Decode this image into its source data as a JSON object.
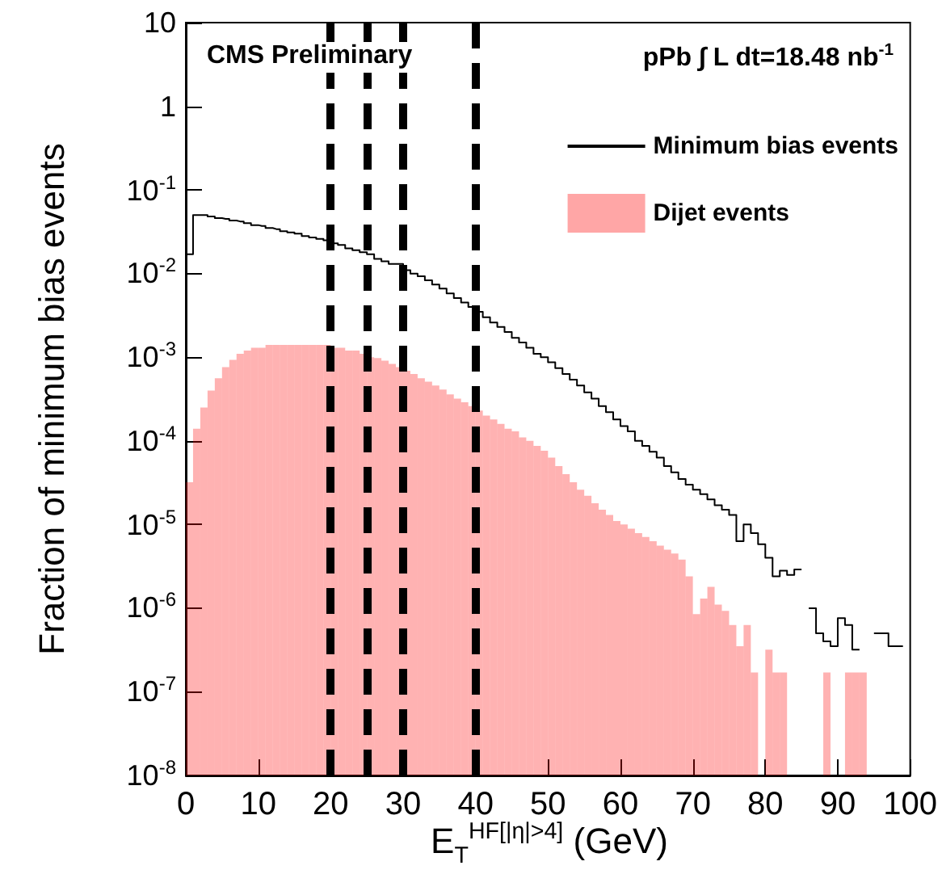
{
  "chart_data": {
    "type": "histogram",
    "xlabel": "E$_{T}$$^{HF[|η|>4]}$ (GeV)",
    "ylabel": "Fraction of minimum bias events",
    "annotations": [
      "CMS Preliminary",
      "pPb ∫ L dt=18.48 nb$^{-1}$"
    ],
    "bins": [
      0,
      1,
      2,
      3,
      4,
      5,
      6,
      7,
      8,
      9,
      10,
      11,
      12,
      13,
      14,
      15,
      16,
      17,
      18,
      19,
      20,
      21,
      22,
      23,
      24,
      25,
      26,
      27,
      28,
      29,
      30,
      31,
      32,
      33,
      34,
      35,
      36,
      37,
      38,
      39,
      40,
      41,
      42,
      43,
      44,
      45,
      46,
      47,
      48,
      49,
      50,
      51,
      52,
      53,
      54,
      55,
      56,
      57,
      58,
      59,
      60,
      61,
      62,
      63,
      64,
      65,
      66,
      67,
      68,
      69,
      70,
      71,
      72,
      73,
      74,
      75,
      76,
      77,
      78,
      79,
      80,
      81,
      82,
      83,
      84,
      85,
      86,
      87,
      88,
      89,
      90,
      91,
      92,
      93,
      94,
      95,
      96,
      97,
      98,
      99,
      100
    ],
    "series": [
      {
        "name": "Minimum bias events",
        "type": "step",
        "color": "#000000",
        "x": [
          0.5,
          1.5,
          2.5,
          3.5,
          4.5,
          5.5,
          6.5,
          7.5,
          8.5,
          9.5,
          10.5,
          11.5,
          12.5,
          13.5,
          14.5,
          15.5,
          16.5,
          17.5,
          18.5,
          19.5,
          20.5,
          21.5,
          22.5,
          23.5,
          24.5,
          25.5,
          26.5,
          27.5,
          28.5,
          29.5,
          30.5,
          31.5,
          32.5,
          33.5,
          34.5,
          35.5,
          36.5,
          37.5,
          38.5,
          39.5,
          40.5,
          41.5,
          42.5,
          43.5,
          44.5,
          45.5,
          46.5,
          47.5,
          48.5,
          49.5,
          50.5,
          51.5,
          52.5,
          53.5,
          54.5,
          55.5,
          56.5,
          57.5,
          58.5,
          59.5,
          60.5,
          61.5,
          62.5,
          63.5,
          64.5,
          65.5,
          66.5,
          67.5,
          68.5,
          69.5,
          70.5,
          71.5,
          72.5,
          73.5,
          74.5,
          75.5,
          76.5,
          77.5,
          78.5,
          79.5,
          80.5,
          81.5,
          82.5,
          83.5,
          84.5,
          85.5,
          86.5,
          87.5,
          88.5,
          89.5,
          90.5,
          91.5,
          92.5,
          93.5,
          94.5,
          95.5,
          96.5,
          97.5,
          98.5
        ],
        "values": [
          0.017,
          0.05,
          0.05,
          0.048,
          0.046,
          0.045,
          0.043,
          0.042,
          0.04,
          0.038,
          0.037,
          0.035,
          0.034,
          0.032,
          0.031,
          0.03,
          0.028,
          0.027,
          0.026,
          0.025,
          0.023,
          0.022,
          0.02,
          0.019,
          0.018,
          0.017,
          0.015,
          0.014,
          0.013,
          0.013,
          0.011,
          0.01,
          0.0093,
          0.0083,
          0.0074,
          0.0066,
          0.0058,
          0.0051,
          0.0045,
          0.004,
          0.0035,
          0.003,
          0.0026,
          0.0023,
          0.002,
          0.0017,
          0.0015,
          0.0013,
          0.0011,
          0.001,
          0.00087,
          0.00074,
          0.00063,
          0.00054,
          0.00046,
          0.00038,
          0.00032,
          0.00026,
          0.00022,
          0.00018,
          0.00015,
          0.00013,
          0.0001,
          8.7e-05,
          7.4e-05,
          6.3e-05,
          5e-05,
          4.2e-05,
          3.5e-05,
          3e-05,
          2.6e-05,
          2.3e-05,
          2e-05,
          1.7e-05,
          1.5e-05,
          1.3e-05,
          6.3e-06,
          1e-05,
          7.9e-06,
          5.8e-06,
          4e-06,
          2.4e-06,
          2.8e-06,
          2.5e-06,
          2.9e-06,
          null,
          1e-06,
          5e-07,
          4e-07,
          3.5e-07,
          7.6e-07,
          6.3e-07,
          3.2e-07,
          null,
          null,
          5e-07,
          5e-07,
          3.5e-07,
          3.5e-07
        ]
      },
      {
        "name": "Dijet events",
        "type": "histogram",
        "color": "#ff0000",
        "values": [
          3.2e-05,
          0.00014,
          0.00025,
          0.0004,
          0.00056,
          0.00076,
          0.00093,
          0.0011,
          0.0012,
          0.0013,
          0.0013,
          0.0014,
          0.0014,
          0.0014,
          0.0014,
          0.0014,
          0.0014,
          0.0014,
          0.0014,
          0.0014,
          0.0013,
          0.0013,
          0.0012,
          0.0012,
          0.0011,
          0.001,
          0.00098,
          0.00091,
          0.00083,
          0.00076,
          0.00069,
          0.00063,
          0.00056,
          0.00051,
          0.00046,
          0.00041,
          0.00036,
          0.00032,
          0.00029,
          0.00026,
          0.00023,
          0.0002,
          0.00018,
          0.00016,
          0.00014,
          0.00013,
          0.00011,
          0.0001,
          8.7e-05,
          7.6e-05,
          6.3e-05,
          5e-05,
          4e-05,
          3.2e-05,
          2.6e-05,
          2.2e-05,
          1.8e-05,
          1.5e-05,
          1.3e-05,
          1.1e-05,
          1e-05,
          8.9e-06,
          7.9e-06,
          7.1e-06,
          6.3e-06,
          5.6e-06,
          5e-06,
          4.5e-06,
          3.8e-06,
          2.4e-06,
          8.5e-07,
          1.3e-06,
          1.8e-06,
          1.1e-06,
          9.3e-07,
          6.3e-07,
          3.5e-07,
          6.3e-07,
          1.7e-07,
          null,
          3.2e-07,
          1.7e-07,
          1.7e-07,
          null,
          null,
          null,
          null,
          null,
          1.7e-07,
          null,
          null,
          1.7e-07,
          1.7e-07,
          1.7e-07,
          null,
          null,
          null,
          null,
          null,
          null
        ]
      }
    ],
    "xlim": [
      0,
      100
    ],
    "xticks": [
      0,
      10,
      20,
      30,
      40,
      50,
      60,
      70,
      80,
      90,
      100
    ],
    "ylim": [
      1e-08,
      10
    ],
    "yticks": [
      {
        "value": 1e-08,
        "label": "10$^{-8}$"
      },
      {
        "value": 1e-07,
        "label": "10$^{-7}$"
      },
      {
        "value": 1e-06,
        "label": "10$^{-6}$"
      },
      {
        "value": 1e-05,
        "label": "10$^{-5}$"
      },
      {
        "value": 0.0001,
        "label": "10$^{-4}$"
      },
      {
        "value": 0.001,
        "label": "10$^{-3}$"
      },
      {
        "value": 0.01,
        "label": "10$^{-2}$"
      },
      {
        "value": 0.1,
        "label": "10$^{-1}$"
      },
      1,
      10
    ],
    "log": "y",
    "ref_lines": [
      {
        "axis": "x",
        "value": 20,
        "color": "#000000",
        "line_style": "dashed"
      },
      {
        "axis": "x",
        "value": 25,
        "color": "#000000",
        "line_style": "dashed"
      },
      {
        "axis": "x",
        "value": 30,
        "color": "#000000",
        "line_style": "dashed"
      },
      {
        "axis": "x",
        "value": 40,
        "color": "#000000",
        "line_style": "dashed"
      }
    ],
    "legend": "top right"
  }
}
